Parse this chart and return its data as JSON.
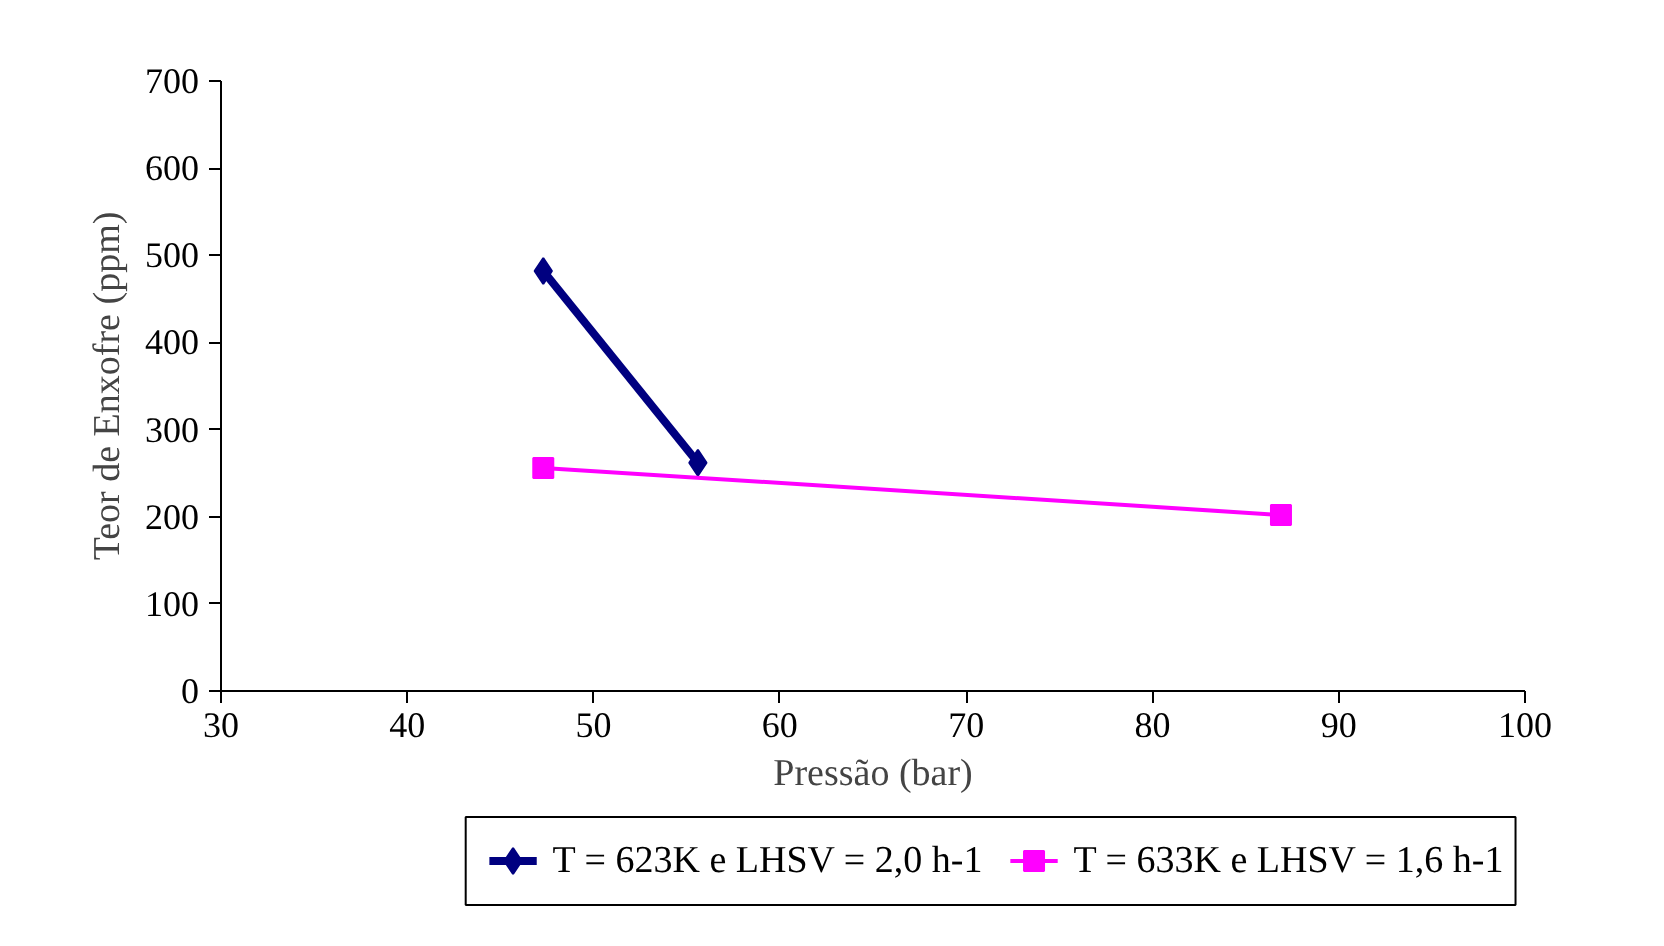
{
  "chart_data": {
    "type": "line",
    "xlabel": "Pressão (bar)",
    "ylabel": "Teor de Enxofre (ppm)",
    "xlim": [
      30,
      100
    ],
    "xticks": [
      30,
      40,
      50,
      60,
      70,
      80,
      90,
      100
    ],
    "ylim": [
      0,
      700
    ],
    "yticks": [
      0,
      100,
      200,
      300,
      400,
      500,
      600,
      700
    ],
    "grid": false,
    "legend": "bottom",
    "series": [
      {
        "name": "T = 623K e LHSV = 2,0 h-1",
        "color": "#000080",
        "marker": "diamond",
        "x": [
          47.3,
          55.6
        ],
        "values": [
          482,
          262
        ]
      },
      {
        "name": "T = 633K e LHSV = 1,6 h-1",
        "color": "#ff00ff",
        "marker": "square",
        "x": [
          47.3,
          86.9
        ],
        "values": [
          256,
          202
        ]
      }
    ]
  }
}
